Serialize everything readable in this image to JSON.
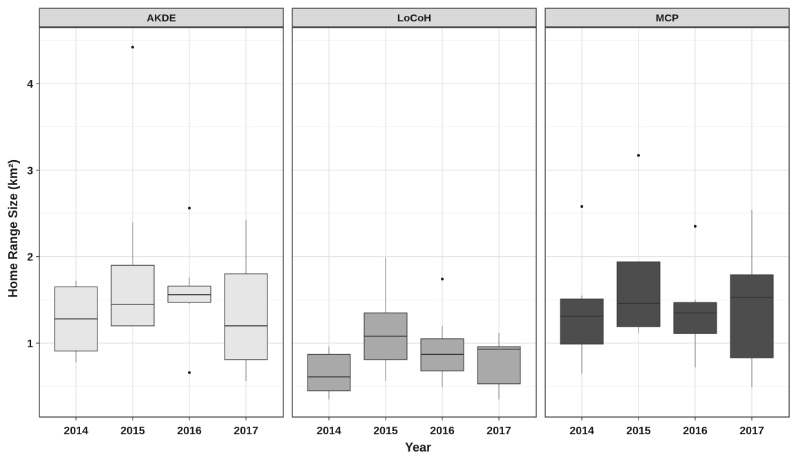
{
  "chart_data": {
    "type": "boxplot",
    "xlabel": "Year",
    "ylabel": "Home Range Size (km²)",
    "ylim": [
      0.3,
      4.6
    ],
    "y_ticks": [
      1,
      2,
      3,
      4
    ],
    "y_tick_labels": [
      "1",
      "2",
      "3",
      "4"
    ],
    "categories": [
      "2014",
      "2015",
      "2016",
      "2017"
    ],
    "grid": true,
    "facets": [
      {
        "name": "AKDE",
        "fill": "#e6e6e6",
        "boxes": [
          {
            "x": "2014",
            "whisker_low": 0.78,
            "q1": 0.91,
            "median": 1.28,
            "q3": 1.65,
            "whisker_high": 1.72,
            "outliers": []
          },
          {
            "x": "2015",
            "whisker_low": 1.2,
            "q1": 1.2,
            "median": 1.45,
            "q3": 1.9,
            "whisker_high": 2.4,
            "outliers": [
              4.42
            ]
          },
          {
            "x": "2016",
            "whisker_low": 1.45,
            "q1": 1.47,
            "median": 1.56,
            "q3": 1.66,
            "whisker_high": 1.76,
            "outliers": [
              2.56,
              0.66
            ]
          },
          {
            "x": "2017",
            "whisker_low": 0.56,
            "q1": 0.81,
            "median": 1.2,
            "q3": 1.8,
            "whisker_high": 2.42,
            "outliers": []
          }
        ]
      },
      {
        "name": "LoCoH",
        "fill": "#a9a9a9",
        "boxes": [
          {
            "x": "2014",
            "whisker_low": 0.35,
            "q1": 0.45,
            "median": 0.61,
            "q3": 0.87,
            "whisker_high": 0.96,
            "outliers": []
          },
          {
            "x": "2015",
            "whisker_low": 0.56,
            "q1": 0.81,
            "median": 1.08,
            "q3": 1.35,
            "whisker_high": 1.99,
            "outliers": []
          },
          {
            "x": "2016",
            "whisker_low": 0.49,
            "q1": 0.68,
            "median": 0.87,
            "q3": 1.05,
            "whisker_high": 1.2,
            "outliers": [
              1.74
            ]
          },
          {
            "x": "2017",
            "whisker_low": 0.35,
            "q1": 0.53,
            "median": 0.93,
            "q3": 0.96,
            "whisker_high": 1.12,
            "outliers": []
          }
        ]
      },
      {
        "name": "MCP",
        "fill": "#4d4d4d",
        "boxes": [
          {
            "x": "2014",
            "whisker_low": 0.65,
            "q1": 0.99,
            "median": 1.31,
            "q3": 1.51,
            "whisker_high": 1.55,
            "outliers": [
              2.58
            ]
          },
          {
            "x": "2015",
            "whisker_low": 1.12,
            "q1": 1.19,
            "median": 1.46,
            "q3": 1.94,
            "whisker_high": 1.94,
            "outliers": [
              3.17
            ]
          },
          {
            "x": "2016",
            "whisker_low": 0.72,
            "q1": 1.11,
            "median": 1.35,
            "q3": 1.47,
            "whisker_high": 1.5,
            "outliers": [
              2.35
            ]
          },
          {
            "x": "2017",
            "whisker_low": 0.49,
            "q1": 0.83,
            "median": 1.53,
            "q3": 1.79,
            "whisker_high": 2.54,
            "outliers": []
          }
        ]
      }
    ]
  }
}
